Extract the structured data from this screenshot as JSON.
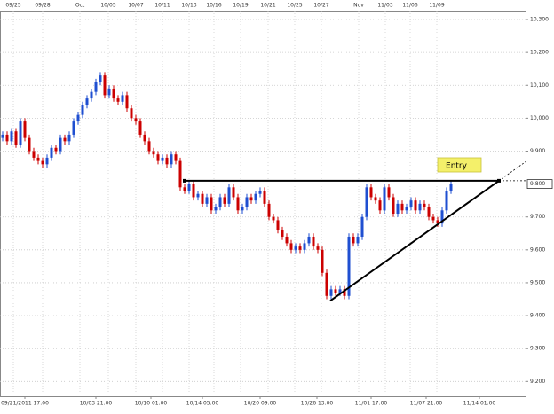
{
  "chart_data": {
    "type": "candlestick",
    "top_labels": [
      "09/25",
      "09/28",
      "Oct",
      "10/05",
      "10/07",
      "10/11",
      "10/13",
      "10/16",
      "10/19",
      "10/21",
      "10/25",
      "10/27",
      "Nov",
      "11/03",
      "11/06",
      "11/09"
    ],
    "bottom_labels": [
      "09/21/2011 17:00",
      "10/03 21:00",
      "10/10 01:00",
      "10/14 05:00",
      "10/20 09:00",
      "10/26 13:00",
      "11/01 17:00",
      "11/07 21:00",
      "11/14 01:00"
    ],
    "ylim": [
      9155,
      10327
    ],
    "yticks": [
      {
        "value": 9200,
        "label": "9,200"
      },
      {
        "value": 9300,
        "label": "9,300"
      },
      {
        "value": 9400,
        "label": "9,400"
      },
      {
        "value": 9500,
        "label": "9,500"
      },
      {
        "value": 9600,
        "label": "9,600"
      },
      {
        "value": 9700,
        "label": "9,700"
      },
      {
        "value": 9800,
        "label": "9,800"
      },
      {
        "value": 9900,
        "label": "9,900"
      },
      {
        "value": 10000,
        "label": "10,000"
      },
      {
        "value": 10100,
        "label": "10,100"
      },
      {
        "value": 10200,
        "label": "10,200"
      },
      {
        "value": 10300,
        "label": "10,300"
      }
    ],
    "grid": true,
    "up_color": "#1f4fd1",
    "down_color": "#cc0000",
    "resistance": 9810,
    "trendline": [
      9445,
      9810
    ],
    "annotation": "Entry",
    "ohlc": [
      [
        9940,
        9960,
        9930,
        9950
      ],
      [
        9950,
        9960,
        9920,
        9930
      ],
      [
        9930,
        9970,
        9920,
        9960
      ],
      [
        9960,
        9970,
        9910,
        9920
      ],
      [
        9920,
        10000,
        9910,
        9990
      ],
      [
        9990,
        10000,
        9930,
        9940
      ],
      [
        9940,
        9950,
        9890,
        9900
      ],
      [
        9900,
        9910,
        9870,
        9880
      ],
      [
        9880,
        9890,
        9860,
        9870
      ],
      [
        9870,
        9880,
        9850,
        9860
      ],
      [
        9860,
        9890,
        9850,
        9880
      ],
      [
        9880,
        9920,
        9870,
        9910
      ],
      [
        9910,
        9920,
        9890,
        9900
      ],
      [
        9900,
        9950,
        9890,
        9940
      ],
      [
        9940,
        9950,
        9920,
        9930
      ],
      [
        9930,
        9960,
        9920,
        9950
      ],
      [
        9950,
        10000,
        9940,
        9990
      ],
      [
        9990,
        10020,
        9980,
        10010
      ],
      [
        10010,
        10050,
        10000,
        10040
      ],
      [
        10040,
        10070,
        10030,
        10060
      ],
      [
        10060,
        10090,
        10050,
        10080
      ],
      [
        10080,
        10120,
        10070,
        10110
      ],
      [
        10110,
        10140,
        10100,
        10130
      ],
      [
        10130,
        10140,
        10060,
        10070
      ],
      [
        10070,
        10100,
        10060,
        10090
      ],
      [
        10090,
        10100,
        10050,
        10060
      ],
      [
        10060,
        10070,
        10040,
        10050
      ],
      [
        10050,
        10080,
        10040,
        10070
      ],
      [
        10070,
        10080,
        10020,
        10030
      ],
      [
        10030,
        10040,
        9990,
        10000
      ],
      [
        10000,
        10010,
        9980,
        9990
      ],
      [
        9990,
        10000,
        9940,
        9950
      ],
      [
        9950,
        9960,
        9920,
        9930
      ],
      [
        9930,
        9940,
        9890,
        9900
      ],
      [
        9900,
        9910,
        9880,
        9890
      ],
      [
        9890,
        9900,
        9860,
        9870
      ],
      [
        9870,
        9890,
        9860,
        9880
      ],
      [
        9880,
        9890,
        9850,
        9860
      ],
      [
        9860,
        9900,
        9850,
        9890
      ],
      [
        9890,
        9900,
        9860,
        9870
      ],
      [
        9870,
        9880,
        9780,
        9790
      ],
      [
        9790,
        9800,
        9770,
        9780
      ],
      [
        9780,
        9810,
        9770,
        9800
      ],
      [
        9800,
        9810,
        9750,
        9760
      ],
      [
        9760,
        9780,
        9750,
        9770
      ],
      [
        9770,
        9780,
        9730,
        9740
      ],
      [
        9740,
        9770,
        9730,
        9760
      ],
      [
        9760,
        9770,
        9710,
        9720
      ],
      [
        9720,
        9740,
        9710,
        9730
      ],
      [
        9730,
        9770,
        9720,
        9760
      ],
      [
        9760,
        9770,
        9730,
        9740
      ],
      [
        9740,
        9800,
        9730,
        9790
      ],
      [
        9790,
        9800,
        9750,
        9760
      ],
      [
        9760,
        9770,
        9710,
        9720
      ],
      [
        9720,
        9740,
        9710,
        9730
      ],
      [
        9730,
        9770,
        9720,
        9760
      ],
      [
        9760,
        9770,
        9740,
        9750
      ],
      [
        9750,
        9780,
        9740,
        9770
      ],
      [
        9770,
        9790,
        9760,
        9780
      ],
      [
        9780,
        9790,
        9730,
        9740
      ],
      [
        9740,
        9750,
        9690,
        9700
      ],
      [
        9700,
        9710,
        9680,
        9690
      ],
      [
        9690,
        9700,
        9650,
        9660
      ],
      [
        9660,
        9670,
        9630,
        9640
      ],
      [
        9640,
        9650,
        9610,
        9620
      ],
      [
        9620,
        9630,
        9590,
        9600
      ],
      [
        9600,
        9620,
        9590,
        9610
      ],
      [
        9610,
        9620,
        9590,
        9600
      ],
      [
        9600,
        9630,
        9590,
        9620
      ],
      [
        9620,
        9650,
        9610,
        9640
      ],
      [
        9640,
        9650,
        9600,
        9610
      ],
      [
        9610,
        9620,
        9590,
        9600
      ],
      [
        9600,
        9610,
        9520,
        9530
      ],
      [
        9530,
        9540,
        9450,
        9460
      ],
      [
        9460,
        9490,
        9450,
        9480
      ],
      [
        9480,
        9490,
        9460,
        9470
      ],
      [
        9470,
        9490,
        9460,
        9480
      ],
      [
        9480,
        9490,
        9450,
        9460
      ],
      [
        9460,
        9650,
        9450,
        9640
      ],
      [
        9640,
        9650,
        9610,
        9620
      ],
      [
        9620,
        9650,
        9610,
        9640
      ],
      [
        9640,
        9710,
        9630,
        9700
      ],
      [
        9700,
        9800,
        9690,
        9790
      ],
      [
        9790,
        9800,
        9750,
        9760
      ],
      [
        9760,
        9770,
        9740,
        9750
      ],
      [
        9750,
        9760,
        9710,
        9720
      ],
      [
        9720,
        9800,
        9710,
        9790
      ],
      [
        9790,
        9800,
        9750,
        9760
      ],
      [
        9760,
        9770,
        9700,
        9710
      ],
      [
        9710,
        9750,
        9700,
        9740
      ],
      [
        9740,
        9750,
        9710,
        9720
      ],
      [
        9720,
        9740,
        9710,
        9730
      ],
      [
        9730,
        9760,
        9720,
        9750
      ],
      [
        9750,
        9760,
        9710,
        9720
      ],
      [
        9720,
        9750,
        9710,
        9740
      ],
      [
        9740,
        9750,
        9720,
        9730
      ],
      [
        9730,
        9740,
        9690,
        9700
      ],
      [
        9700,
        9710,
        9680,
        9690
      ],
      [
        9690,
        9700,
        9670,
        9680
      ],
      [
        9680,
        9730,
        9670,
        9720
      ],
      [
        9720,
        9790,
        9710,
        9780
      ],
      [
        9780,
        9810,
        9770,
        9800
      ]
    ]
  }
}
